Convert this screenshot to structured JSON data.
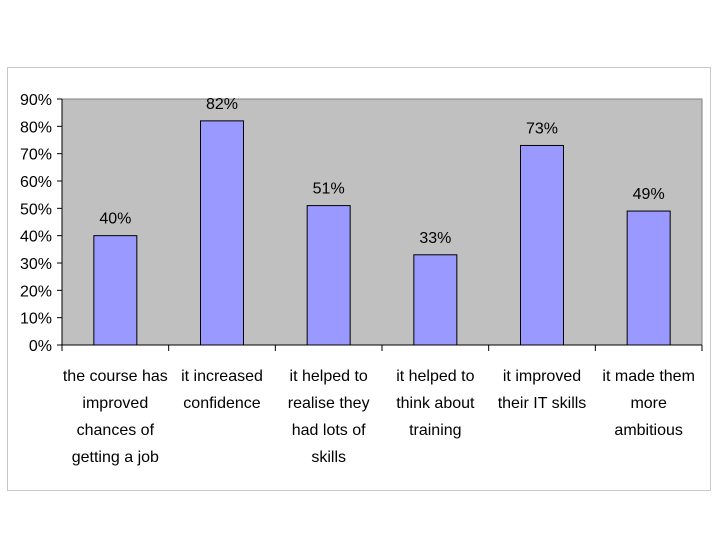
{
  "chart_data": {
    "type": "bar",
    "title": "",
    "xlabel": "",
    "ylabel": "",
    "ylim": [
      0,
      90
    ],
    "yticks": [
      "0%",
      "10%",
      "20%",
      "30%",
      "40%",
      "50%",
      "60%",
      "70%",
      "80%",
      "90%"
    ],
    "grid": false,
    "legend": "none",
    "categories": [
      [
        "the course has",
        "improved",
        "chances of",
        "getting a job"
      ],
      [
        "it increased",
        "confidence"
      ],
      [
        "it helped to",
        "realise they",
        "had lots of",
        "skills"
      ],
      [
        "it helped to",
        "think about",
        "training"
      ],
      [
        "it improved",
        "their IT skills"
      ],
      [
        "it made them",
        "more",
        "ambitious"
      ]
    ],
    "values": [
      40,
      82,
      51,
      33,
      73,
      49
    ],
    "data_labels": [
      "40%",
      "82%",
      "51%",
      "33%",
      "73%",
      "49%"
    ],
    "colors": {
      "plot_background": "#c0c0c0",
      "bar_fill": "#9999ff",
      "bar_stroke": "#000000",
      "axis": "#000000",
      "frame_border": "#c8c8c8"
    }
  }
}
